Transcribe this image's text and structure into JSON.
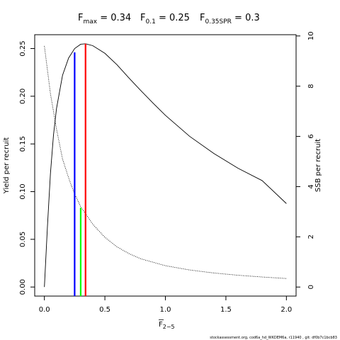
{
  "chart_data": {
    "type": "line",
    "title_parts": [
      {
        "main": "F",
        "sub": "max",
        "value": " = 0.34"
      },
      {
        "main": "F",
        "sub": "0.1",
        "value": " = 0.25"
      },
      {
        "main": "F",
        "sub": "0.35SPR",
        "value": " = 0.3"
      }
    ],
    "xlabel": {
      "main": "F",
      "sub": "2−5"
    },
    "ylabel_left": "Yield per recruit",
    "ylabel_right": "SSB per recruit",
    "xlim": [
      -0.08,
      2.08
    ],
    "ylim_left": [
      -0.0095,
      0.2645
    ],
    "ylim_right": [
      -0.36,
      10.05
    ],
    "x_ticks": [
      0,
      0.5,
      1,
      1.5,
      2
    ],
    "x_tick_labels": [
      "0.0",
      "0.5",
      "1.0",
      "1.5",
      "2.0"
    ],
    "y_left_ticks": [
      0,
      0.05,
      0.1,
      0.15,
      0.2,
      0.25
    ],
    "y_left_tick_labels": [
      "0.00",
      "0.05",
      "0.10",
      "0.15",
      "0.20",
      "0.25"
    ],
    "y_right_ticks": [
      0,
      2,
      4,
      6,
      8,
      10
    ],
    "y_right_tick_labels": [
      "0",
      "2",
      "4",
      "6",
      "8",
      "10"
    ],
    "series": [
      {
        "axis": "left",
        "style": "solid",
        "x": [
          0,
          0.025,
          0.05,
          0.075,
          0.1,
          0.15,
          0.2,
          0.25,
          0.3,
          0.34,
          0.4,
          0.5,
          0.6,
          0.7,
          0.8,
          0.9,
          1.0,
          1.2,
          1.4,
          1.6,
          1.8,
          2.0
        ],
        "y": [
          0.0,
          0.063,
          0.119,
          0.159,
          0.187,
          0.222,
          0.24,
          0.25,
          0.2545,
          0.255,
          0.253,
          0.245,
          0.233,
          0.219,
          0.2055,
          0.1925,
          0.18,
          0.158,
          0.14,
          0.1245,
          0.1115,
          0.0875
        ]
      },
      {
        "axis": "right",
        "style": "dotted",
        "x": [
          0,
          0.05,
          0.1,
          0.15,
          0.2,
          0.25,
          0.3,
          0.4,
          0.5,
          0.6,
          0.7,
          0.8,
          1.0,
          1.2,
          1.4,
          1.6,
          1.8,
          2.0
        ],
        "y": [
          9.6,
          7.7,
          6.3,
          5.1,
          4.35,
          3.7,
          3.2,
          2.5,
          1.98,
          1.6,
          1.33,
          1.12,
          0.85,
          0.68,
          0.56,
          0.47,
          0.4,
          0.34
        ]
      }
    ],
    "reference_lines": [
      {
        "x": 0.25,
        "axis": "left",
        "y_top": 0.246,
        "color": "#0000ff"
      },
      {
        "x": 0.3,
        "axis": "left",
        "y_top": 0.083,
        "color": "#00ff00"
      },
      {
        "x": 0.34,
        "axis": "left",
        "y_top": 0.255,
        "color": "#ff0000"
      }
    ],
    "footnote": "stockassessment.org,  cod6a_hd_WKDEM6a,  r11940 ,  git:  df0b7c1bcb83"
  },
  "colors": {
    "axis": "#000000",
    "background": "#ffffff"
  }
}
